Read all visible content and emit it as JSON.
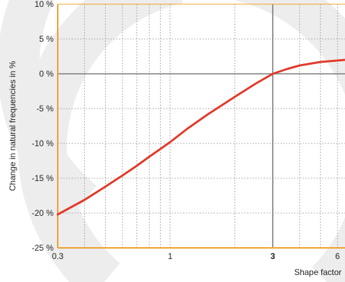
{
  "chart_data": {
    "type": "line",
    "title": "",
    "xlabel": "Shape factor",
    "ylabel": "Change in natural frequencies in %",
    "x_scale": "log",
    "xlim": [
      0.3,
      6.5
    ],
    "ylim": [
      -25,
      10
    ],
    "x_ticks": [
      {
        "value": 0.3,
        "label": "0.3",
        "bold": false
      },
      {
        "value": 1,
        "label": "1",
        "bold": false
      },
      {
        "value": 3,
        "label": "3",
        "bold": true
      },
      {
        "value": 6,
        "label": "6",
        "bold": false
      }
    ],
    "y_ticks": [
      {
        "value": 10,
        "label": "10 %"
      },
      {
        "value": 5,
        "label": "5 %"
      },
      {
        "value": 0,
        "label": "0 %"
      },
      {
        "value": -5,
        "label": "-5 %"
      },
      {
        "value": -10,
        "label": "-10 %"
      },
      {
        "value": -15,
        "label": "-15 %"
      },
      {
        "value": -20,
        "label": "-20 %"
      },
      {
        "value": -25,
        "label": "-25 %"
      }
    ],
    "x_minor_gridlines": [
      0.4,
      0.5,
      0.6,
      0.7,
      0.8,
      0.9,
      2,
      4,
      5
    ],
    "reference_lines": {
      "x": 3,
      "y": 0
    },
    "grid": true,
    "series": [
      {
        "color": "#e03a2a",
        "x": [
          0.3,
          0.4,
          0.5,
          0.6,
          0.7,
          0.8,
          0.9,
          1.0,
          1.2,
          1.5,
          2.0,
          2.5,
          3.0,
          3.5,
          4.0,
          5.0,
          6.5
        ],
        "y": [
          -20.2,
          -18.1,
          -16.2,
          -14.6,
          -13.2,
          -11.9,
          -10.8,
          -9.8,
          -7.9,
          -5.8,
          -3.3,
          -1.4,
          0.0,
          0.7,
          1.2,
          1.7,
          2.0
        ]
      }
    ],
    "colors": {
      "frame": "#f0a028",
      "grid": "#9a9a9a",
      "reference": "#7a7a7a",
      "watermark": "#ededed"
    }
  }
}
